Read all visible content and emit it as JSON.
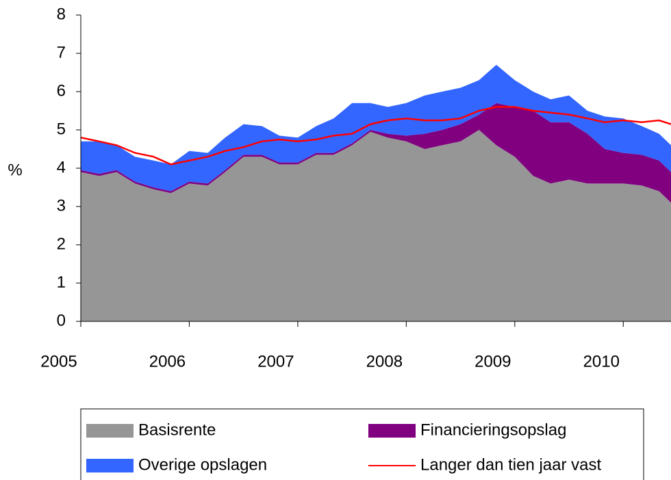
{
  "chart_data": {
    "type": "stacked_area",
    "y_label": "%",
    "x": [
      2005,
      2005.17,
      2005.33,
      2005.5,
      2005.67,
      2005.83,
      2006,
      2006.17,
      2006.33,
      2006.5,
      2006.67,
      2006.83,
      2007,
      2007.17,
      2007.33,
      2007.5,
      2007.67,
      2007.83,
      2008,
      2008.17,
      2008.33,
      2008.5,
      2008.67,
      2008.83,
      2009,
      2009.17,
      2009.33,
      2009.5,
      2009.67,
      2009.83,
      2010,
      2010.17,
      2010.33,
      2010.44
    ],
    "series": [
      {
        "name": "Basisrente",
        "color": "#969696",
        "kind": "area",
        "values": [
          3.9,
          3.8,
          3.9,
          3.6,
          3.45,
          3.35,
          3.6,
          3.55,
          3.9,
          4.3,
          4.3,
          4.1,
          4.1,
          4.35,
          4.35,
          4.6,
          4.95,
          4.8,
          4.7,
          4.5,
          4.6,
          4.7,
          5.0,
          4.6,
          4.3,
          3.8,
          3.6,
          3.7,
          3.6,
          3.6,
          3.6,
          3.55,
          3.4,
          3.1
        ]
      },
      {
        "name": "Financieringsopslag",
        "color": "#800080",
        "kind": "area",
        "values": [
          0.05,
          0.05,
          0.05,
          0.05,
          0.05,
          0.05,
          0.05,
          0.05,
          0.05,
          0.05,
          0.05,
          0.05,
          0.05,
          0.05,
          0.05,
          0.05,
          0.05,
          0.1,
          0.15,
          0.4,
          0.4,
          0.45,
          0.4,
          1.1,
          1.3,
          1.7,
          1.6,
          1.5,
          1.3,
          0.9,
          0.8,
          0.8,
          0.8,
          0.8
        ]
      },
      {
        "name": "Overige opslagen",
        "color": "#3366ff",
        "kind": "area",
        "values": [
          0.75,
          0.85,
          0.65,
          0.65,
          0.7,
          0.7,
          0.8,
          0.8,
          0.85,
          0.8,
          0.75,
          0.7,
          0.65,
          0.7,
          0.9,
          1.05,
          0.7,
          0.7,
          0.85,
          1.0,
          1.0,
          0.95,
          0.9,
          1.0,
          0.7,
          0.5,
          0.6,
          0.7,
          0.6,
          0.85,
          0.9,
          0.75,
          0.7,
          0.7
        ]
      },
      {
        "name": "Langer dan tien jaar vast",
        "color": "#ff0000",
        "kind": "line",
        "values": [
          4.8,
          4.7,
          4.6,
          4.4,
          4.3,
          4.1,
          4.2,
          4.3,
          4.45,
          4.55,
          4.7,
          4.75,
          4.7,
          4.75,
          4.85,
          4.9,
          5.15,
          5.25,
          5.3,
          5.25,
          5.25,
          5.3,
          5.5,
          5.6,
          5.6,
          5.5,
          5.45,
          5.4,
          5.3,
          5.2,
          5.25,
          5.2,
          5.25,
          5.15
        ]
      }
    ],
    "xlim": [
      2005,
      2010.44
    ],
    "xticks": [
      2005,
      2006,
      2007,
      2008,
      2009,
      2010
    ],
    "ylim": [
      0,
      8
    ],
    "yticks": [
      0,
      1,
      2,
      3,
      4,
      5,
      6,
      7,
      8
    ]
  }
}
